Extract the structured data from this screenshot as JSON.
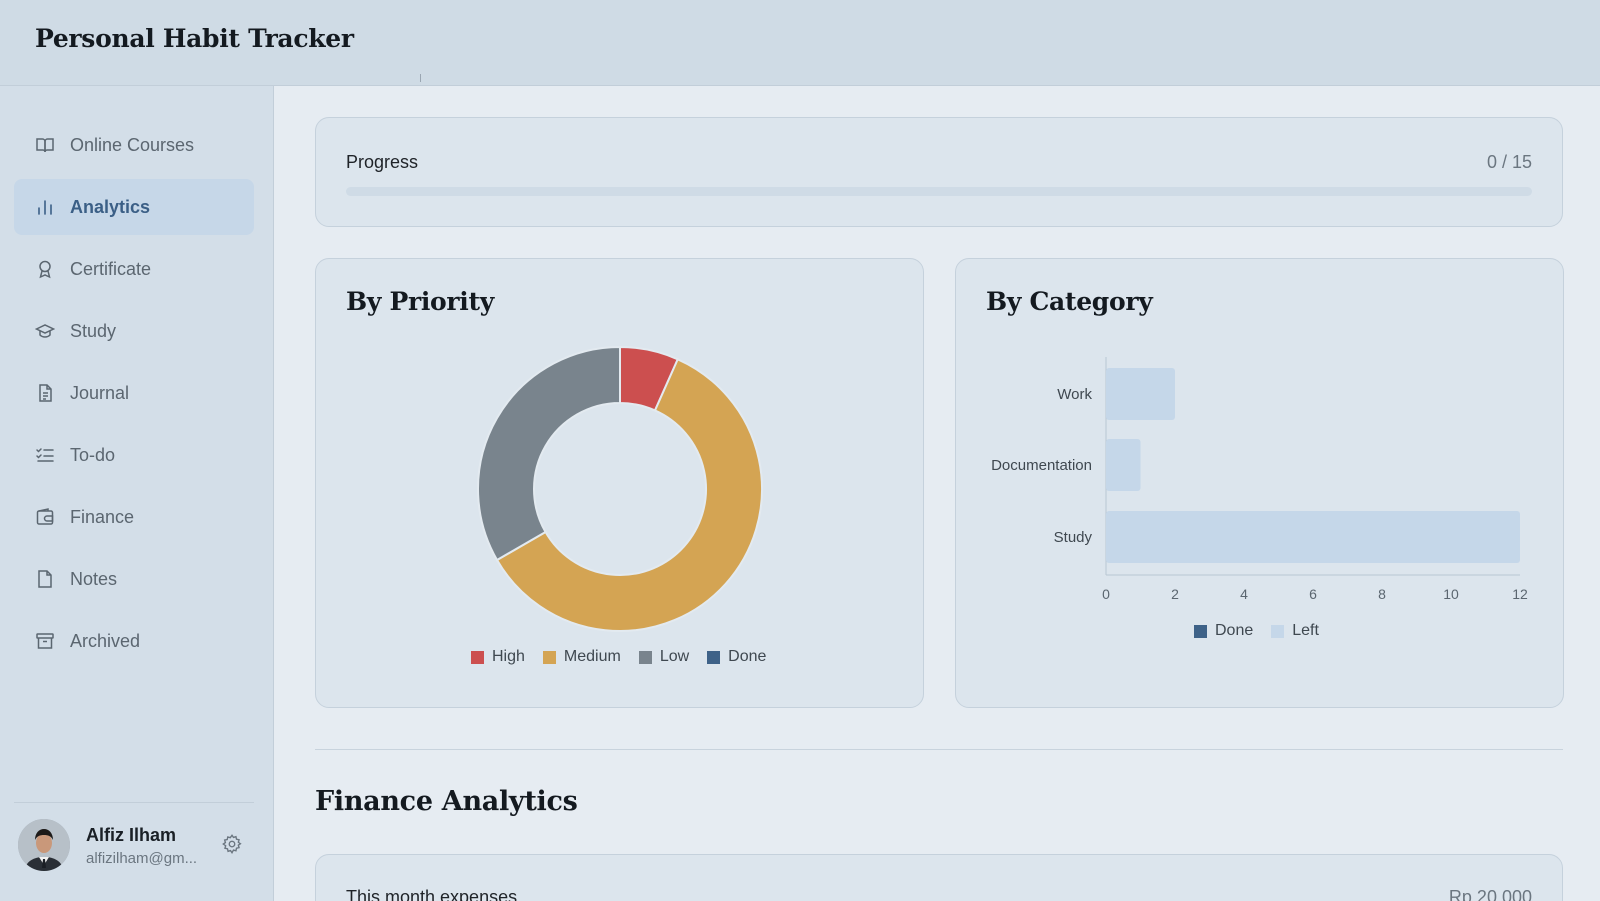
{
  "app": {
    "title": "Personal Habit Tracker"
  },
  "sidebar": {
    "items": [
      {
        "label": "Online Courses",
        "icon": "book-open-icon",
        "active": false
      },
      {
        "label": "Analytics",
        "icon": "bar-chart-icon",
        "active": true
      },
      {
        "label": "Certificate",
        "icon": "award-icon",
        "active": false
      },
      {
        "label": "Study",
        "icon": "graduation-cap-icon",
        "active": false
      },
      {
        "label": "Journal",
        "icon": "file-text-icon",
        "active": false
      },
      {
        "label": "To-do",
        "icon": "list-check-icon",
        "active": false
      },
      {
        "label": "Finance",
        "icon": "wallet-icon",
        "active": false
      },
      {
        "label": "Notes",
        "icon": "file-icon",
        "active": false
      },
      {
        "label": "Archived",
        "icon": "archive-icon",
        "active": false
      }
    ],
    "user": {
      "name": "Alfiz Ilham",
      "email": "alfizilham@gm..."
    }
  },
  "progress": {
    "label": "Progress",
    "count": "0 / 15",
    "done": 0,
    "total": 15
  },
  "colors": {
    "high": "#cc4f4f",
    "medium": "#d4a453",
    "low": "#79848d",
    "done": "#3e6288",
    "left": "#c5d7e9"
  },
  "chart_data": [
    {
      "type": "pie",
      "title": "By Priority",
      "donut": true,
      "categories": [
        "High",
        "Medium",
        "Low",
        "Done"
      ],
      "values": [
        1,
        9,
        5,
        0
      ],
      "legend": "bottom"
    },
    {
      "type": "bar",
      "orientation": "horizontal",
      "stacked": true,
      "title": "By Category",
      "categories": [
        "Work",
        "Documentation",
        "Study"
      ],
      "series": [
        {
          "name": "Done",
          "values": [
            0,
            0,
            0
          ]
        },
        {
          "name": "Left",
          "values": [
            2,
            1,
            12
          ]
        }
      ],
      "xlim": [
        0,
        12
      ],
      "xticks": [
        "0",
        "2",
        "4",
        "6",
        "8",
        "10",
        "12"
      ],
      "legend": "bottom"
    }
  ],
  "finance": {
    "section_title": "Finance Analytics",
    "expenses_label": "This month expenses",
    "expenses_value": "Rp 20.000"
  }
}
